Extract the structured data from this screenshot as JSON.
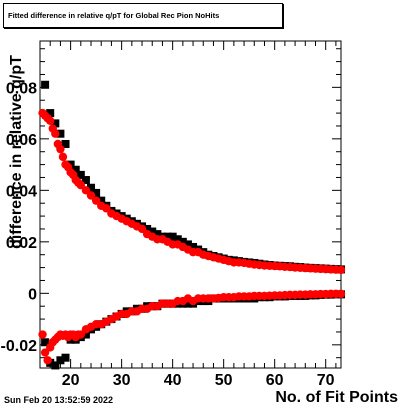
{
  "title": "Fitted difference in relative q/pT for Global Rec Pion NoHits",
  "timestamp": "Sun Feb 20 13:52:59 2022",
  "chart_data": {
    "type": "scatter",
    "title": "Fitted difference in relative q/pT for Global Rec Pion NoHits",
    "xlabel": "No. of Fit Points",
    "ylabel": "difference in relative q/pT",
    "xlim": [
      14,
      73
    ],
    "ylim": [
      -0.029,
      0.098
    ],
    "xticks": [
      20,
      30,
      40,
      50,
      60,
      70
    ],
    "xtick_labels": [
      "20",
      "30",
      "40",
      "50",
      "60",
      "70"
    ],
    "yticks": [
      -0.02,
      0,
      0.02,
      0.04,
      0.06,
      0.08
    ],
    "ytick_labels": [
      "-0.02",
      "0",
      "0.02",
      "0.04",
      "0.06",
      "0.08"
    ],
    "grid": false,
    "colors": {
      "black": "#000000",
      "red": "#ff0000"
    },
    "series": [
      {
        "color": "black",
        "marker": "square",
        "x": [
          15,
          16,
          17,
          18,
          19,
          20,
          21,
          22,
          23,
          24,
          25,
          26,
          27,
          28,
          29,
          30,
          31,
          32,
          33,
          34,
          35,
          36,
          37,
          38,
          39,
          40,
          41,
          42,
          43,
          44,
          45,
          46,
          47,
          48,
          49,
          50,
          51,
          52,
          53,
          54,
          55,
          56,
          57,
          58,
          59,
          60,
          61,
          62,
          63,
          64,
          65,
          66,
          67,
          68,
          69,
          70,
          71,
          72,
          73
        ],
        "y": [
          0.081,
          0.07,
          0.066,
          0.062,
          0.058,
          0.05,
          0.048,
          0.046,
          0.044,
          0.041,
          0.039,
          0.036,
          0.034,
          0.032,
          0.031,
          0.03,
          0.029,
          0.028,
          0.027,
          0.026,
          0.025,
          0.024,
          0.023,
          0.022,
          0.022,
          0.022,
          0.021,
          0.02,
          0.019,
          0.018,
          0.017,
          0.016,
          0.015,
          0.0145,
          0.014,
          0.0135,
          0.013,
          0.0128,
          0.0125,
          0.0122,
          0.012,
          0.0118,
          0.0115,
          0.0112,
          0.011,
          0.0108,
          0.0107,
          0.0106,
          0.0105,
          0.0103,
          0.0102,
          0.01,
          0.0099,
          0.0098,
          0.0097,
          0.0096,
          0.0095,
          0.0094,
          0.0093
        ]
      },
      {
        "color": "black",
        "marker": "square",
        "x": [
          15,
          16,
          17,
          18,
          19,
          20,
          21,
          22,
          23,
          24,
          25,
          26,
          27,
          28,
          29,
          30,
          31,
          32,
          33,
          34,
          35,
          36,
          37,
          38,
          39,
          40,
          41,
          42,
          43,
          44,
          45,
          46,
          47,
          48,
          49,
          50,
          51,
          52,
          53,
          54,
          55,
          56,
          57,
          58,
          59,
          60,
          61,
          62,
          63,
          64,
          65,
          66,
          67,
          68,
          69,
          70,
          71,
          72,
          73
        ],
        "y": [
          -0.019,
          -0.027,
          -0.028,
          -0.026,
          -0.025,
          -0.018,
          -0.018,
          -0.017,
          -0.016,
          -0.014,
          -0.013,
          -0.012,
          -0.011,
          -0.01,
          -0.009,
          -0.008,
          -0.007,
          -0.007,
          -0.006,
          -0.006,
          -0.005,
          -0.005,
          -0.005,
          -0.004,
          -0.004,
          -0.004,
          -0.004,
          -0.004,
          -0.004,
          -0.004,
          -0.003,
          -0.003,
          -0.003,
          -0.002,
          -0.002,
          -0.002,
          -0.002,
          -0.002,
          -0.002,
          -0.002,
          -0.002,
          -0.002,
          -0.0015,
          -0.0015,
          -0.0015,
          -0.0012,
          -0.0012,
          -0.0012,
          -0.001,
          -0.001,
          -0.001,
          -0.001,
          -0.0008,
          -0.0008,
          -0.0006,
          -0.0005,
          -0.0005,
          -0.0004,
          -0.0004
        ]
      },
      {
        "color": "red",
        "marker": "circle",
        "x": [
          14.5,
          15,
          15.5,
          16,
          16.5,
          17,
          17.5,
          18,
          18.5,
          19,
          19.5,
          20,
          20.5,
          21,
          21.5,
          22,
          23,
          24,
          25,
          26,
          27,
          28,
          29,
          30,
          31,
          32,
          33,
          34,
          35,
          36,
          37,
          38,
          39,
          40,
          41,
          42,
          43,
          44,
          45,
          46,
          47,
          48,
          49,
          50,
          51,
          52,
          53,
          54,
          55,
          56,
          57,
          58,
          59,
          60,
          61,
          62,
          63,
          64,
          65,
          66,
          67,
          68,
          69,
          70,
          71,
          72,
          73
        ],
        "y": [
          0.07,
          0.069,
          0.068,
          0.067,
          0.064,
          0.062,
          0.058,
          0.056,
          0.053,
          0.05,
          0.049,
          0.047,
          0.046,
          0.044,
          0.043,
          0.042,
          0.04,
          0.038,
          0.036,
          0.034,
          0.033,
          0.031,
          0.03,
          0.029,
          0.028,
          0.027,
          0.026,
          0.025,
          0.023,
          0.022,
          0.021,
          0.021,
          0.02,
          0.019,
          0.019,
          0.018,
          0.017,
          0.016,
          0.016,
          0.015,
          0.0145,
          0.014,
          0.0135,
          0.013,
          0.0125,
          0.012,
          0.012,
          0.0118,
          0.0115,
          0.0112,
          0.011,
          0.0108,
          0.0107,
          0.0106,
          0.0105,
          0.0103,
          0.0102,
          0.01,
          0.0099,
          0.0098,
          0.0097,
          0.0096,
          0.0095,
          0.0094,
          0.0093,
          0.0092,
          0.0091
        ]
      },
      {
        "color": "red",
        "marker": "circle",
        "x": [
          14.5,
          15,
          15.5,
          16,
          16.5,
          17,
          17.5,
          18,
          18.5,
          19,
          19.5,
          20,
          20.5,
          21,
          21.5,
          22,
          23,
          24,
          25,
          26,
          27,
          28,
          29,
          30,
          31,
          32,
          33,
          34,
          35,
          36,
          37,
          38,
          39,
          40,
          41,
          42,
          43,
          44,
          45,
          46,
          47,
          48,
          49,
          50,
          51,
          52,
          53,
          54,
          55,
          56,
          57,
          58,
          59,
          60,
          61,
          62,
          63,
          64,
          65,
          66,
          67,
          68,
          69,
          70,
          71,
          72,
          73
        ],
        "y": [
          -0.016,
          -0.023,
          -0.026,
          -0.021,
          -0.019,
          -0.018,
          -0.017,
          -0.016,
          -0.0165,
          -0.016,
          -0.017,
          -0.016,
          -0.016,
          -0.017,
          -0.016,
          -0.016,
          -0.014,
          -0.013,
          -0.012,
          -0.012,
          -0.011,
          -0.01,
          -0.009,
          -0.008,
          -0.008,
          -0.007,
          -0.007,
          -0.006,
          -0.006,
          -0.005,
          -0.005,
          -0.004,
          -0.004,
          -0.004,
          -0.003,
          -0.003,
          -0.002,
          -0.003,
          -0.002,
          -0.002,
          -0.002,
          -0.002,
          -0.0018,
          -0.0015,
          -0.0015,
          -0.0015,
          -0.0012,
          -0.0012,
          -0.0012,
          -0.001,
          -0.001,
          -0.001,
          -0.0009,
          -0.0008,
          -0.0008,
          -0.0007,
          -0.0006,
          -0.0006,
          -0.0005,
          -0.0005,
          -0.0004,
          -0.0004,
          -0.0003,
          -0.0003,
          -0.0002,
          -0.0002,
          -0.0002
        ]
      }
    ]
  }
}
